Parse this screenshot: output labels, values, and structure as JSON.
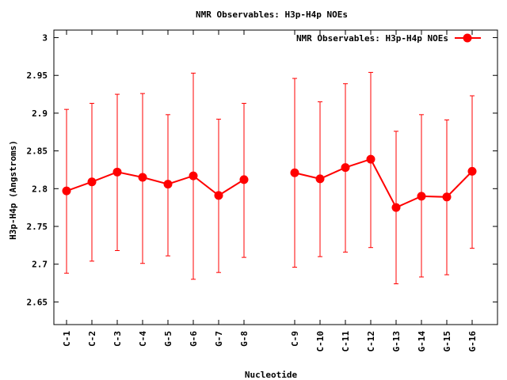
{
  "chart_data": {
    "type": "line",
    "title": "NMR Observables: H3p-H4p NOEs",
    "xlabel": "Nucleotide",
    "ylabel": "H3p-H4p (Angstroms)",
    "ylim": [
      2.62,
      3.01
    ],
    "yticks": [
      "2.65",
      "2.7",
      "2.75",
      "2.8",
      "2.85",
      "2.9",
      "2.95",
      "3"
    ],
    "ytick_values": [
      2.65,
      2.7,
      2.75,
      2.8,
      2.85,
      2.9,
      2.95,
      3.0
    ],
    "xlim": [
      0.5,
      18.0
    ],
    "grid": false,
    "legend_position": "top-right",
    "series": [
      {
        "name": "NMR Observables: H3p-H4p NOEs",
        "color": "#ff0000",
        "points": [
          {
            "label": "C-1",
            "x": 1,
            "y": 2.797,
            "ymin": 2.688,
            "ymax": 2.905
          },
          {
            "label": "C-2",
            "x": 2,
            "y": 2.809,
            "ymin": 2.704,
            "ymax": 2.913
          },
          {
            "label": "C-3",
            "x": 3,
            "y": 2.822,
            "ymin": 2.718,
            "ymax": 2.925
          },
          {
            "label": "C-4",
            "x": 4,
            "y": 2.815,
            "ymin": 2.701,
            "ymax": 2.926
          },
          {
            "label": "G-5",
            "x": 5,
            "y": 2.806,
            "ymin": 2.711,
            "ymax": 2.898
          },
          {
            "label": "G-6",
            "x": 6,
            "y": 2.817,
            "ymin": 2.68,
            "ymax": 2.953
          },
          {
            "label": "G-7",
            "x": 7,
            "y": 2.791,
            "ymin": 2.689,
            "ymax": 2.892
          },
          {
            "label": "G-8",
            "x": 8,
            "y": 2.812,
            "ymin": 2.709,
            "ymax": 2.913
          },
          {
            "label": "C-9",
            "x": 10,
            "y": 2.821,
            "ymin": 2.696,
            "ymax": 2.946
          },
          {
            "label": "C-10",
            "x": 11,
            "y": 2.813,
            "ymin": 2.71,
            "ymax": 2.915
          },
          {
            "label": "C-11",
            "x": 12,
            "y": 2.828,
            "ymin": 2.716,
            "ymax": 2.939
          },
          {
            "label": "C-12",
            "x": 13,
            "y": 2.839,
            "ymin": 2.722,
            "ymax": 2.954
          },
          {
            "label": "G-13",
            "x": 14,
            "y": 2.775,
            "ymin": 2.674,
            "ymax": 2.876
          },
          {
            "label": "G-14",
            "x": 15,
            "y": 2.79,
            "ymin": 2.683,
            "ymax": 2.898
          },
          {
            "label": "G-15",
            "x": 16,
            "y": 2.789,
            "ymin": 2.686,
            "ymax": 2.891
          },
          {
            "label": "G-16",
            "x": 17,
            "y": 2.823,
            "ymin": 2.721,
            "ymax": 2.923
          }
        ],
        "segments": [
          [
            0,
            7
          ],
          [
            8,
            15
          ]
        ]
      }
    ]
  }
}
